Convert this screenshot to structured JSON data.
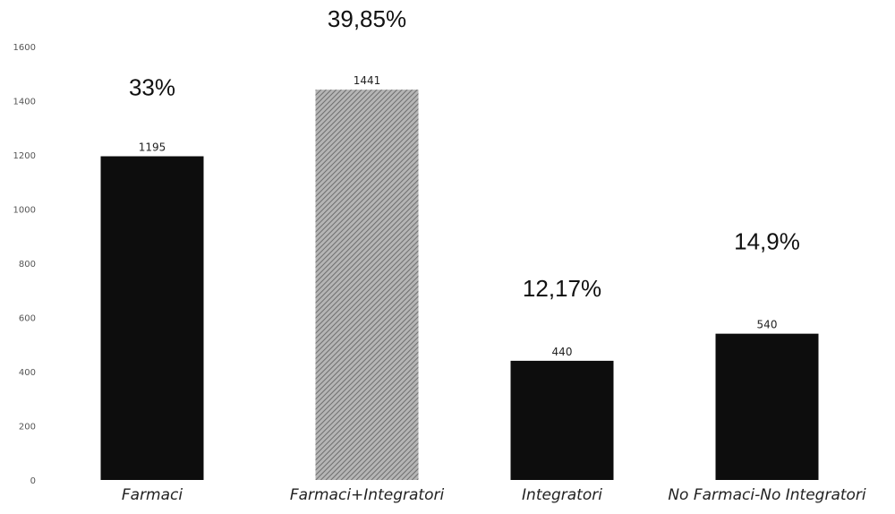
{
  "chart_data": {
    "type": "bar",
    "categories": [
      "Farmaci",
      "Farmaci+Integratori",
      "Integratori",
      "No Farmaci-No Integratori"
    ],
    "values": [
      1195,
      1441,
      440,
      540
    ],
    "value_labels": [
      "1195",
      "1441",
      "440",
      "540"
    ],
    "percent_labels": [
      "33%",
      "39,85%",
      "12,17%",
      "14,9%"
    ],
    "ylim": [
      0,
      1600
    ],
    "yticks": [
      0,
      200,
      400,
      600,
      800,
      1000,
      1200,
      1400,
      1600
    ],
    "ytick_labels": [
      "0",
      "200",
      "400",
      "600",
      "800",
      "1000",
      "1200",
      "1400",
      "1600"
    ],
    "grid": false,
    "legend": "none",
    "colors": [
      "#0d0d0d",
      "#9a9a9a",
      "#0d0d0d",
      "#0d0d0d"
    ],
    "title": "",
    "xlabel": "",
    "ylabel": ""
  }
}
